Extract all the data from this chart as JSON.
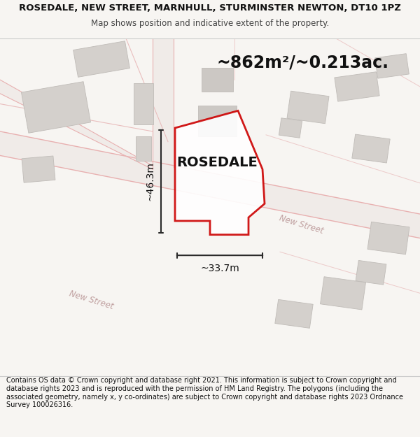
{
  "title": "ROSEDALE, NEW STREET, MARNHULL, STURMINSTER NEWTON, DT10 1PZ",
  "subtitle": "Map shows position and indicative extent of the property.",
  "footer": "Contains OS data © Crown copyright and database right 2021. This information is subject to Crown copyright and database rights 2023 and is reproduced with the permission of HM Land Registry. The polygons (including the associated geometry, namely x, y co-ordinates) are subject to Crown copyright and database rights 2023 Ordnance Survey 100026316.",
  "property_name": "ROSEDALE",
  "area_text": "~862m²/~0.213ac.",
  "width_text": "~33.7m",
  "height_text": "~46.3m",
  "map_bg": "#f7f5f2",
  "bldg_color": "#d4d0cc",
  "bldg_edge": "#c0bcb8",
  "prop_fill": "#ffffff",
  "prop_edge": "#cc0000",
  "road_line": "#e8b0b0",
  "road_fill": "#f0ebe8",
  "dim_color": "#2a2a2a",
  "text_color": "#111111",
  "road_label_color": "#c0a0a0",
  "page_bg": "#f7f5f2",
  "sep_color": "#cccccc",
  "title_fs": 9.5,
  "subtitle_fs": 8.5,
  "footer_fs": 7.0,
  "prop_label_fs": 14,
  "area_fs": 17,
  "dim_fs": 10,
  "road_fs": 8.5
}
